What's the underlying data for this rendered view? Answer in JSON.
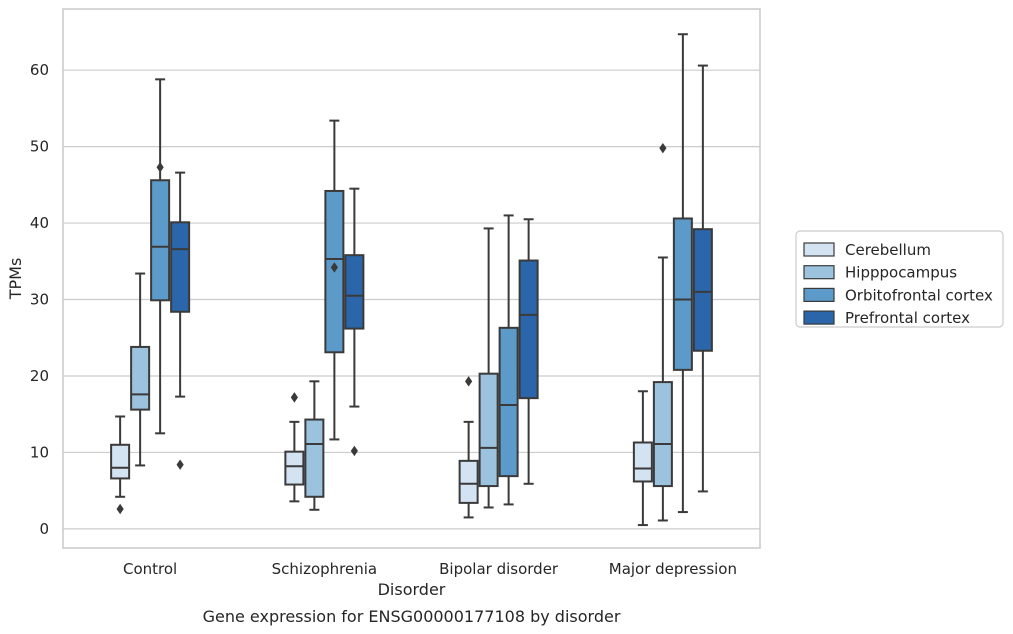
{
  "chart_data": {
    "type": "box",
    "xlabel": "Disorder",
    "ylabel": "TPMs",
    "caption": "Gene expression for ENSG00000177108 by disorder",
    "ylim": [
      -2.5,
      68
    ],
    "yticks": [
      0,
      10,
      20,
      30,
      40,
      50,
      60
    ],
    "grid": true,
    "legend_position": "right",
    "categories": [
      "Control",
      "Schizophrenia",
      "Bipolar disorder",
      "Major depression"
    ],
    "series": [
      {
        "name": "Cerebellum",
        "color": "#d4e3f2",
        "boxes": [
          {
            "whislo": 4.2,
            "q1": 6.6,
            "med": 8.0,
            "q3": 11.0,
            "whishi": 14.7,
            "fliers": [
              2.6
            ]
          },
          {
            "whislo": 3.6,
            "q1": 5.8,
            "med": 8.2,
            "q3": 10.1,
            "whishi": 14.0,
            "fliers": [
              17.2
            ]
          },
          {
            "whislo": 1.5,
            "q1": 3.4,
            "med": 5.9,
            "q3": 8.9,
            "whishi": 14.0,
            "fliers": [
              19.3
            ]
          },
          {
            "whislo": 0.5,
            "q1": 6.2,
            "med": 7.9,
            "q3": 11.3,
            "whishi": 18.0,
            "fliers": []
          }
        ]
      },
      {
        "name": "Hipppocampus",
        "color": "#9bc3de",
        "boxes": [
          {
            "whislo": 8.3,
            "q1": 15.6,
            "med": 17.6,
            "q3": 23.8,
            "whishi": 33.4,
            "fliers": []
          },
          {
            "whislo": 2.5,
            "q1": 4.2,
            "med": 11.1,
            "q3": 14.3,
            "whishi": 19.3,
            "fliers": []
          },
          {
            "whislo": 2.8,
            "q1": 5.6,
            "med": 10.6,
            "q3": 20.3,
            "whishi": 39.3,
            "fliers": []
          },
          {
            "whislo": 1.1,
            "q1": 5.6,
            "med": 11.1,
            "q3": 19.2,
            "whishi": 35.5,
            "fliers": [
              49.8
            ]
          }
        ]
      },
      {
        "name": "Orbitofrontal cortex",
        "color": "#5b9ac9",
        "boxes": [
          {
            "whislo": 12.5,
            "q1": 29.9,
            "med": 36.9,
            "q3": 45.6,
            "whishi": 58.8,
            "fliers": [
              47.3
            ]
          },
          {
            "whislo": 11.7,
            "q1": 23.1,
            "med": 35.3,
            "q3": 44.2,
            "whishi": 53.4,
            "fliers": [
              34.2
            ]
          },
          {
            "whislo": 3.2,
            "q1": 6.9,
            "med": 16.2,
            "q3": 26.3,
            "whishi": 41.0,
            "fliers": []
          },
          {
            "whislo": 2.2,
            "q1": 20.8,
            "med": 30.0,
            "q3": 40.6,
            "whishi": 64.7,
            "fliers": []
          }
        ]
      },
      {
        "name": "Prefrontal cortex",
        "color": "#2a66a9",
        "boxes": [
          {
            "whislo": 17.3,
            "q1": 28.4,
            "med": 36.6,
            "q3": 40.1,
            "whishi": 46.6,
            "fliers": [
              8.4
            ]
          },
          {
            "whislo": 16.0,
            "q1": 26.2,
            "med": 30.5,
            "q3": 35.8,
            "whishi": 44.5,
            "fliers": [
              10.2
            ]
          },
          {
            "whislo": 5.9,
            "q1": 17.1,
            "med": 28.0,
            "q3": 35.1,
            "whishi": 40.5,
            "fliers": []
          },
          {
            "whislo": 4.9,
            "q1": 23.3,
            "med": 31.0,
            "q3": 39.2,
            "whishi": 60.6,
            "fliers": []
          }
        ]
      }
    ]
  }
}
